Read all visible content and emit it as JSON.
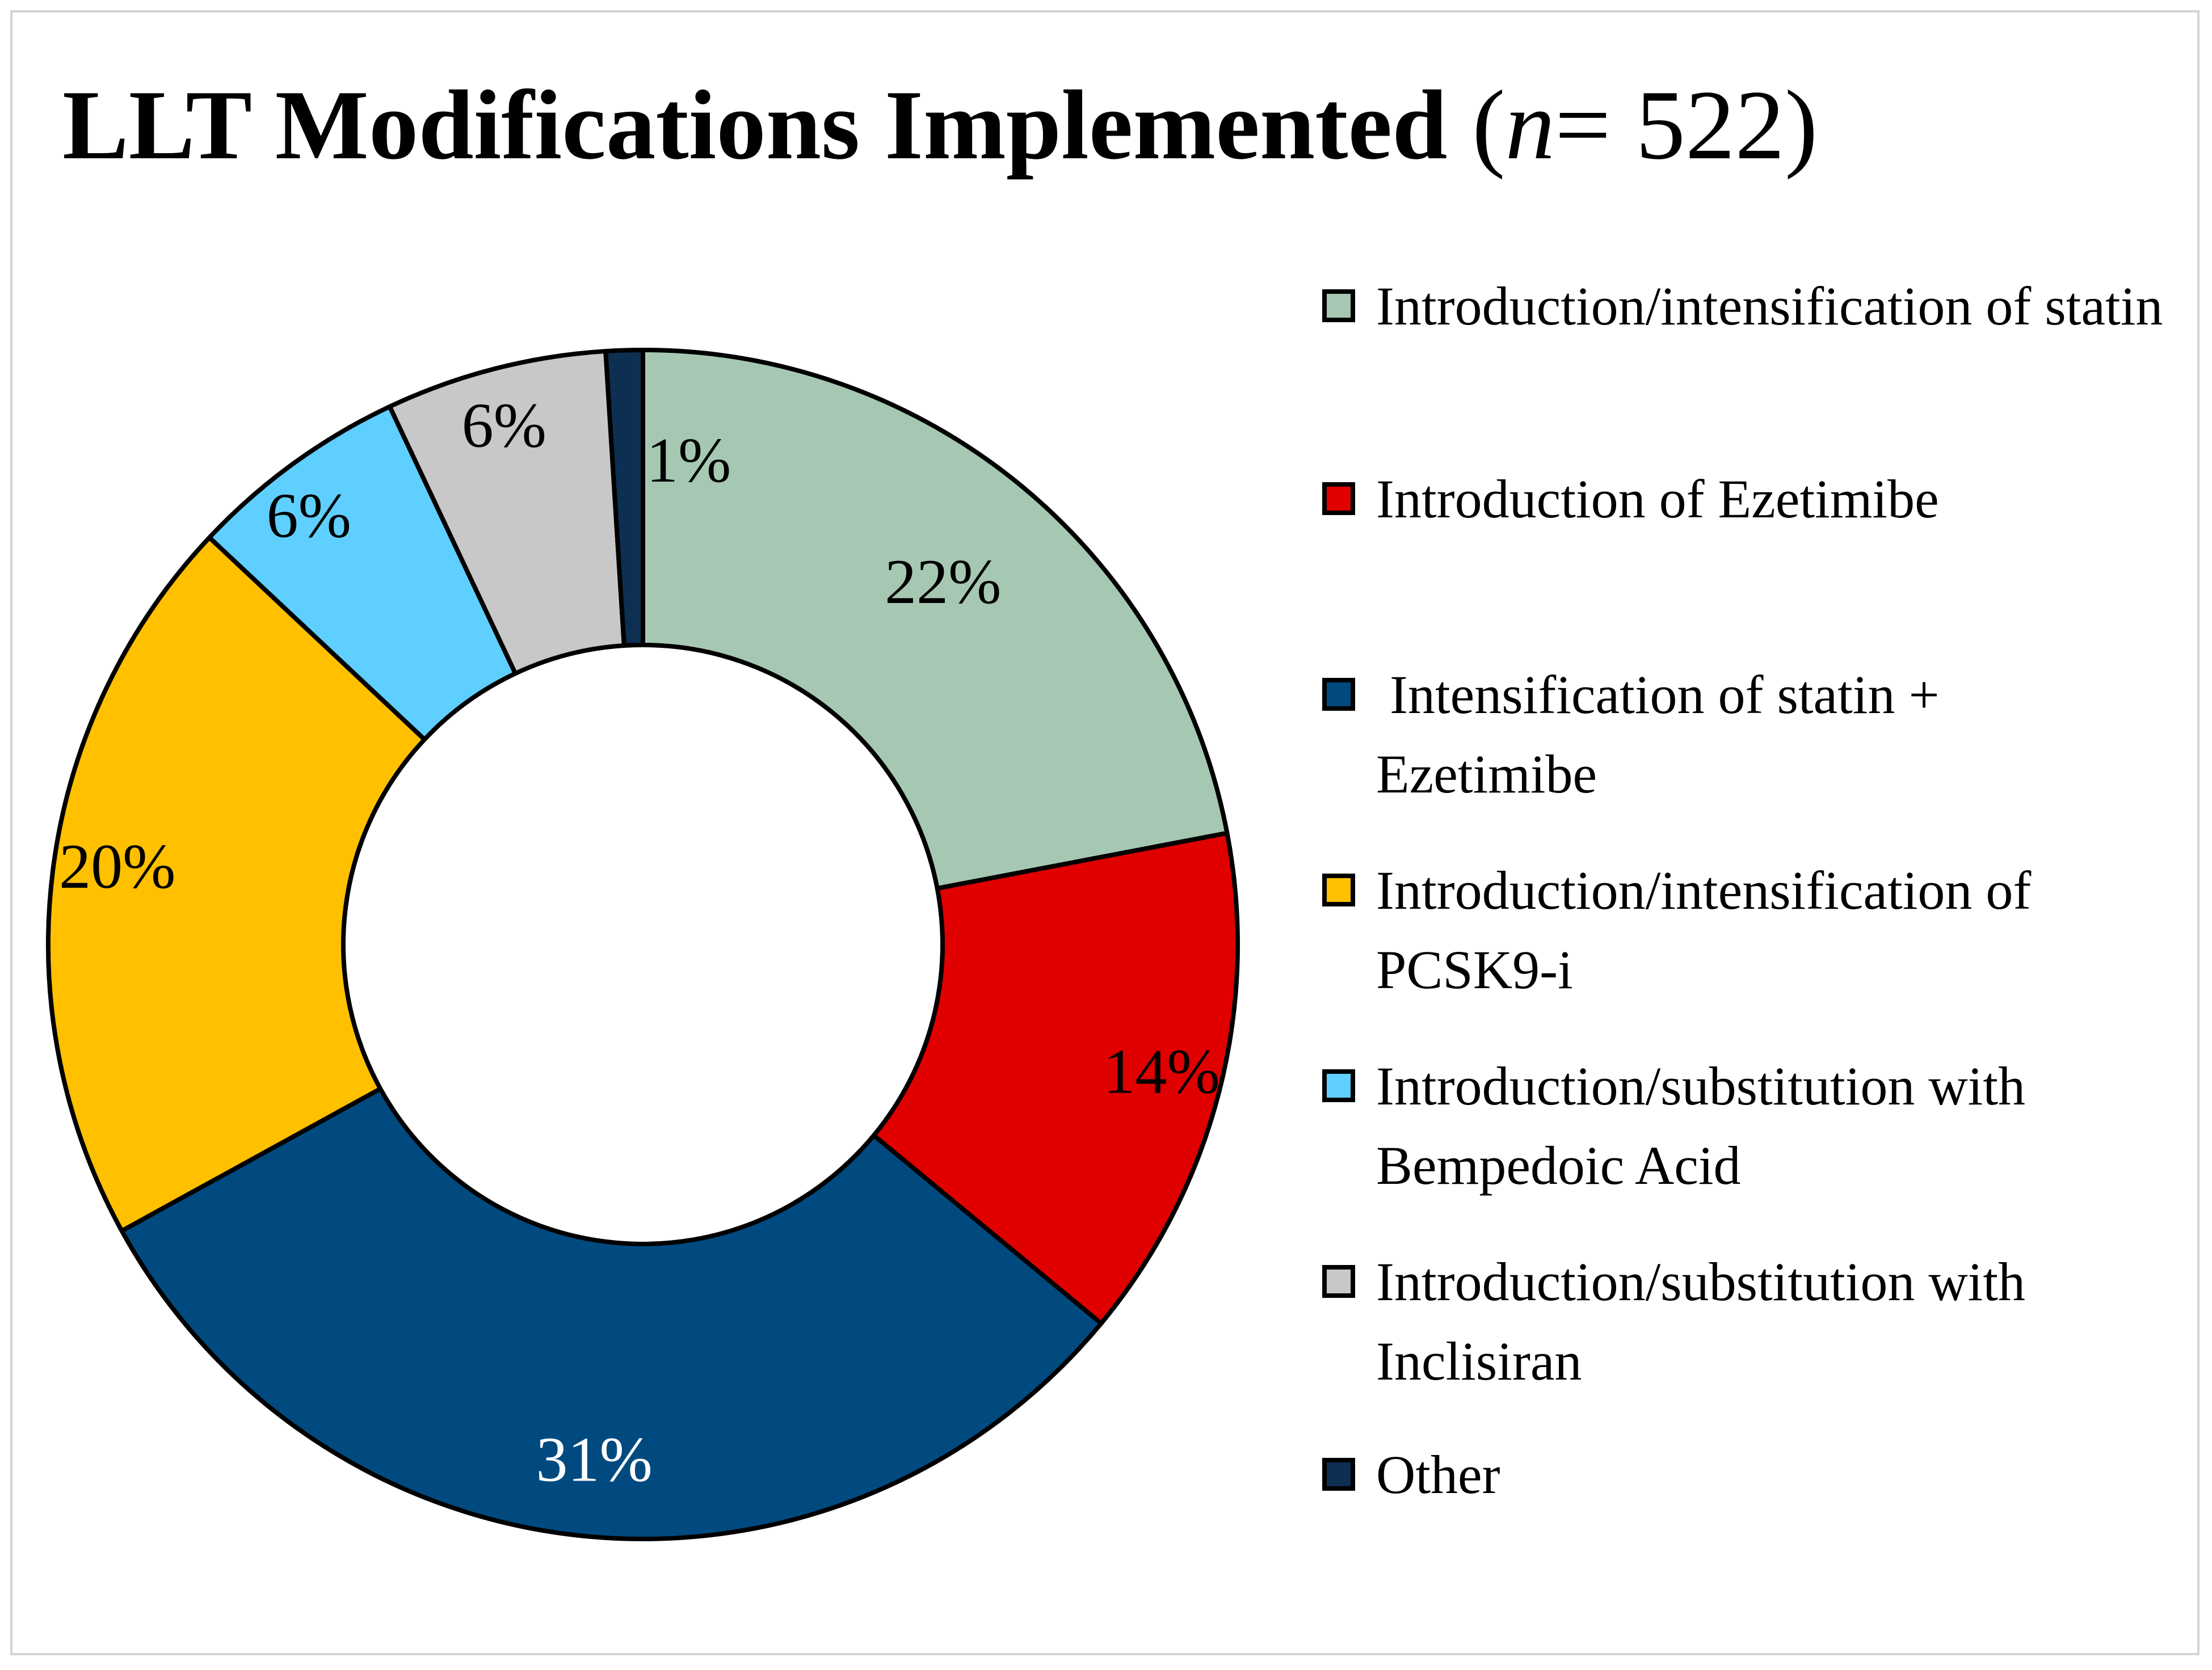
{
  "chart_data": {
    "type": "pie",
    "donut": true,
    "title": "LLT Modifications Implemented",
    "title_n": "n",
    "title_n_value": "= 522)",
    "title_open": "(",
    "legend_position": "right",
    "series": [
      {
        "name": "Introduction/intensification of statin",
        "value": 22,
        "label": "22%",
        "color": "#a6c8b3",
        "label_color": "#000000"
      },
      {
        "name": "Introduction of Ezetimibe",
        "value": 14,
        "label": "14%",
        "color": "#e00000",
        "label_color": "#000000"
      },
      {
        "name": " Intensification of statin + Ezetimibe",
        "value": 31,
        "label": "31%",
        "color": "#004a80",
        "label_color": "#ffffff"
      },
      {
        "name": "Introduction/intensification of PCSK9-i",
        "value": 20,
        "label": "20%",
        "color": "#ffc000",
        "label_color": "#000000"
      },
      {
        "name": "Introduction/substitution with Bempedoic Acid",
        "value": 6,
        "label": "6%",
        "color": "#5fcfff",
        "label_color": "#000000"
      },
      {
        "name": "Introduction/substitution with Inclisiran",
        "value": 6,
        "label": "6%",
        "color": "#c8c8c8",
        "label_color": "#000000"
      },
      {
        "name": "Other",
        "value": 1,
        "label": "1%",
        "color": "#0c2f52",
        "label_color": "#000000"
      }
    ],
    "legend_order": [
      0,
      1,
      2,
      3,
      4,
      5,
      6
    ]
  }
}
